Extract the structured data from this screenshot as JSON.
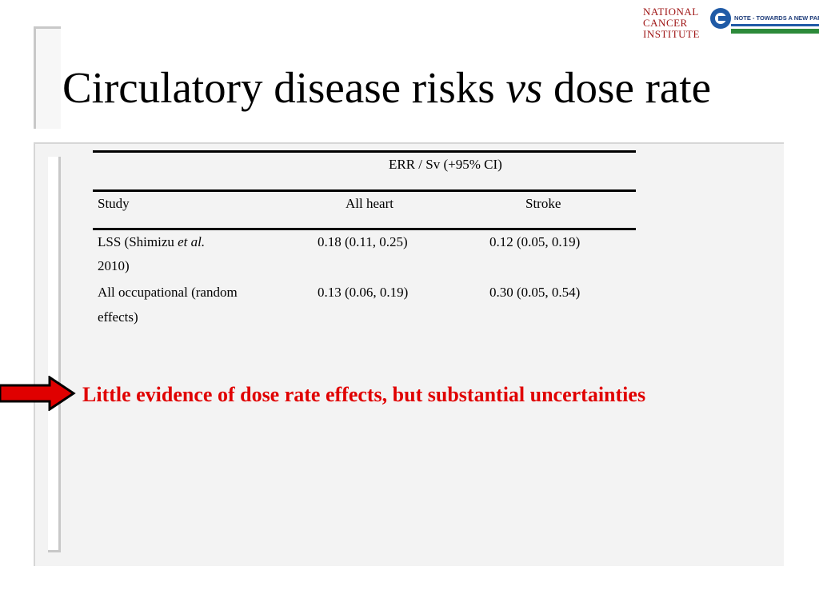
{
  "title": {
    "before": "Circulatory disease risks ",
    "italic": "vs",
    "after": " dose rate"
  },
  "logos": {
    "nci": [
      "NATIONAL",
      "CANCER",
      "INSTITUTE"
    ],
    "ic_text": "NOTE - TOWARDS A NEW PARADIGM"
  },
  "table": {
    "group_header": "ERR / Sv (+95% CI)",
    "columns": [
      "Study",
      "All heart",
      "Stroke"
    ],
    "rows": [
      {
        "study_line1_before": "LSS (Shimizu ",
        "study_line1_italic": "et al.",
        "study_line2": "2010)",
        "all_heart": "0.18 (0.11, 0.25)",
        "stroke": "0.12 (0.05, 0.19)"
      },
      {
        "study_line1": "All occupational (random",
        "study_line2": "effects)",
        "all_heart": "0.13 (0.06, 0.19)",
        "stroke": "0.30 (0.05, 0.54)"
      }
    ]
  },
  "note": "Little evidence of dose rate effects, but substantial uncertainties",
  "colors": {
    "note": "#e00000",
    "arrow_fill": "#e00000",
    "panel": "#f3f3f3"
  }
}
